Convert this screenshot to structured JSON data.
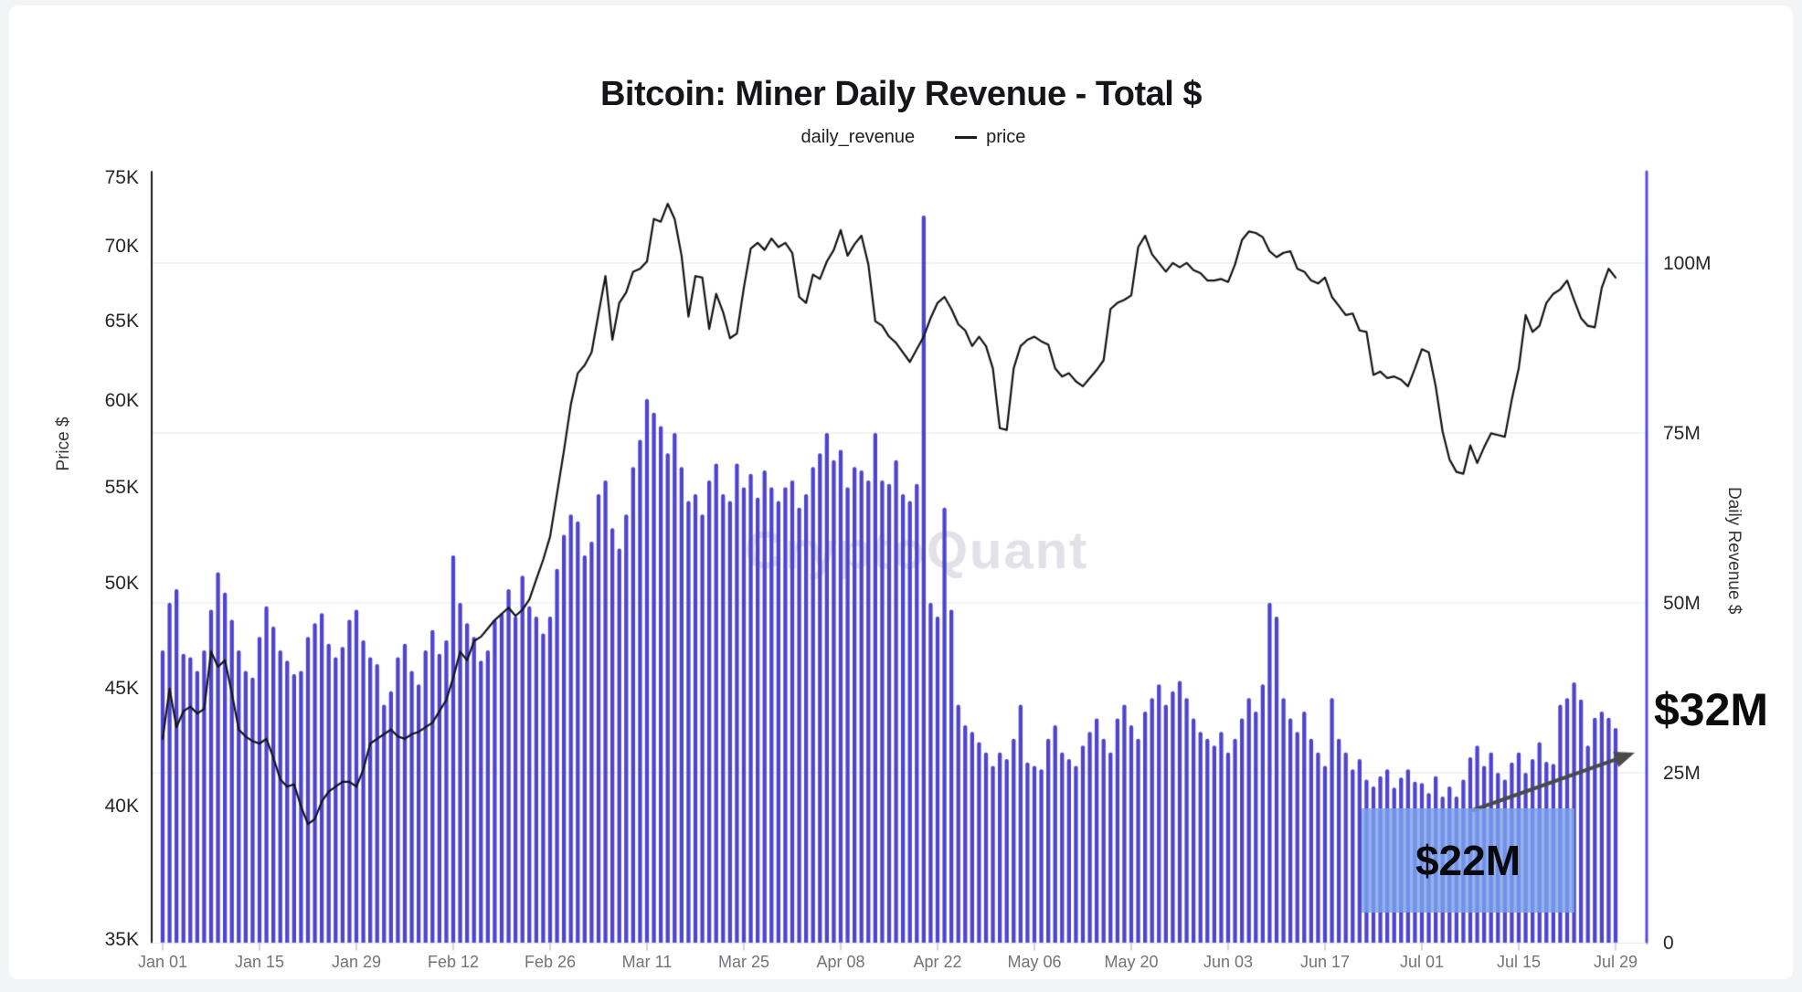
{
  "header": {
    "title": "Bitcoin: Miner Daily Revenue - Total $"
  },
  "legend": [
    {
      "label": "daily_revenue",
      "marker": "dot"
    },
    {
      "label": "price",
      "marker": "line"
    }
  ],
  "watermark": "CryptoQuant",
  "annotations": {
    "box_label": "$22M",
    "callout_label": "$32M"
  },
  "axes": {
    "price": {
      "title": "Price $",
      "scale": "log",
      "tick_labels": [
        "75K",
        "70K",
        "65K",
        "60K",
        "55K",
        "50K",
        "45K",
        "40K",
        "35K"
      ],
      "tick_values": [
        75,
        70,
        65,
        60,
        55,
        50,
        45,
        40,
        35
      ]
    },
    "revenue": {
      "title": "Daily Revenue $",
      "scale": "linear",
      "tick_labels": [
        "100M",
        "75M",
        "50M",
        "25M",
        "0"
      ],
      "tick_values": [
        100,
        75,
        50,
        25,
        0
      ]
    },
    "x": {
      "tick_labels": [
        "Jan 01",
        "Jan 15",
        "Jan 29",
        "Feb 12",
        "Feb 26",
        "Mar 11",
        "Mar 25",
        "Apr 08",
        "Apr 22",
        "May 06",
        "May 20",
        "Jun 03",
        "Jun 17",
        "Jul 01",
        "Jul 15",
        "Jul 29"
      ],
      "tick_day_index": [
        0,
        14,
        28,
        42,
        56,
        70,
        84,
        98,
        112,
        126,
        140,
        154,
        168,
        182,
        196,
        210
      ]
    }
  },
  "colors": {
    "bar": "#4e44d0",
    "price_line": "#131318",
    "left_axis": "#1c1c1f",
    "right_axis": "#5b4cd9",
    "grid": "#eeeef1",
    "baseline": "#e6e6ea",
    "tick_mark": "#c6c6cc",
    "arrow": "#4a4a4a",
    "watermark": "#e1e1e7"
  },
  "chart_data": {
    "type": "bar",
    "title": "Bitcoin: Miner Daily Revenue - Total $",
    "date_range": "Jan 01 - Jul 29",
    "n_points": 211,
    "legend_position": "top-center",
    "grid": "horizontal, right-axis ticks only",
    "left_axis": {
      "label": "Price $",
      "scale": "log",
      "min": 35000,
      "max": 75000
    },
    "right_axis": {
      "label": "Daily Revenue $",
      "scale": "linear",
      "min": 0,
      "max": 110000000
    },
    "series": [
      {
        "name": "daily_revenue",
        "type": "bar",
        "axis": "right",
        "unit": "million USD per day",
        "values": [
          43,
          50,
          52,
          42.5,
          42,
          40,
          43,
          49,
          54.5,
          51.5,
          47.5,
          43,
          40,
          39,
          45,
          49.5,
          46.5,
          43,
          41.5,
          39.5,
          40,
          45,
          47,
          48.5,
          44,
          42,
          43.5,
          47.5,
          49,
          44.5,
          42,
          41,
          35,
          37,
          42,
          44,
          40,
          38,
          43,
          46,
          42.5,
          44.5,
          57,
          50,
          47,
          45,
          41.5,
          43,
          47.5,
          48.5,
          52,
          48,
          54,
          49.5,
          48,
          45.5,
          48,
          55,
          60,
          63,
          62,
          57,
          59,
          66,
          68,
          61,
          58,
          63,
          70,
          74,
          80,
          78,
          76,
          72,
          75,
          70,
          65,
          66,
          63,
          68,
          70.5,
          66,
          65,
          70.5,
          67,
          69,
          65.5,
          69.5,
          67,
          65,
          67,
          68,
          64,
          66,
          70,
          72,
          75,
          71,
          72.5,
          67,
          70,
          69.5,
          68,
          75,
          68,
          67.5,
          71,
          66,
          65,
          67.5,
          107,
          50,
          48,
          64,
          49,
          35,
          32,
          31,
          29.5,
          28,
          26,
          28,
          27,
          30,
          35,
          26.5,
          26,
          25.5,
          30,
          32,
          28,
          27,
          26,
          29,
          31,
          33,
          30,
          28,
          33,
          35,
          32,
          30,
          34,
          36,
          38,
          35,
          37,
          38.5,
          36,
          33,
          31,
          30,
          29,
          31,
          28,
          30,
          33,
          36,
          34,
          38,
          50,
          48,
          36,
          33,
          31,
          34,
          30,
          28,
          26,
          36,
          30,
          28,
          25.5,
          27,
          24,
          23,
          24.5,
          25.5,
          22.8,
          24.3,
          25.5,
          23.7,
          23.5,
          22,
          24.5,
          21.5,
          23,
          21.5,
          24,
          27.3,
          29,
          26,
          28,
          25,
          24,
          26.5,
          28,
          25,
          27,
          29.5,
          26.6,
          26.3,
          35,
          36,
          38.3,
          35.8,
          29,
          33.1,
          34,
          33.1,
          31.6
        ]
      },
      {
        "name": "price",
        "type": "line",
        "axis": "left",
        "unit": "thousand USD",
        "values": [
          42.8,
          45.0,
          43.3,
          44.0,
          44.2,
          43.9,
          44.1,
          46.7,
          46.0,
          46.3,
          44.8,
          43.2,
          42.9,
          42.7,
          42.6,
          42.8,
          42.0,
          41.1,
          40.8,
          40.9,
          40.0,
          39.3,
          39.5,
          40.2,
          40.6,
          40.8,
          41.0,
          41.0,
          40.8,
          41.5,
          42.6,
          42.8,
          43.0,
          43.2,
          42.9,
          42.8,
          43.0,
          43.1,
          43.3,
          43.5,
          44.0,
          44.5,
          45.5,
          46.7,
          46.3,
          47.2,
          47.4,
          47.8,
          48.2,
          48.5,
          48.8,
          48.4,
          48.7,
          49.2,
          50.2,
          51.2,
          52.4,
          54.7,
          57.1,
          59.8,
          61.7,
          62.2,
          63.0,
          65.5,
          68.0,
          63.8,
          66.2,
          66.9,
          68.3,
          68.5,
          69.0,
          72.0,
          71.8,
          73.1,
          72.0,
          69.4,
          65.3,
          68.0,
          67.9,
          64.5,
          66.8,
          65.6,
          63.9,
          64.2,
          67.2,
          69.9,
          70.3,
          69.8,
          70.6,
          70.0,
          70.3,
          69.6,
          66.6,
          66.2,
          68.1,
          67.8,
          69.0,
          69.8,
          71.2,
          69.4,
          70.2,
          70.8,
          68.8,
          65.0,
          64.7,
          64.0,
          63.6,
          63.0,
          62.4,
          63.2,
          64.0,
          65.2,
          66.2,
          66.6,
          65.8,
          64.8,
          64.4,
          63.4,
          64.0,
          63.4,
          62.0,
          58.4,
          58.3,
          62.0,
          63.4,
          63.8,
          64.0,
          63.7,
          63.5,
          62.0,
          61.5,
          61.7,
          61.2,
          60.9,
          61.4,
          61.9,
          62.5,
          65.8,
          66.2,
          66.4,
          66.7,
          70.0,
          70.8,
          69.5,
          68.9,
          68.3,
          68.9,
          68.6,
          68.9,
          68.4,
          68.2,
          67.7,
          67.7,
          67.8,
          67.6,
          68.8,
          70.5,
          71.1,
          71.0,
          70.7,
          69.7,
          69.3,
          69.6,
          69.7,
          68.5,
          68.3,
          67.7,
          67.5,
          67.9,
          66.6,
          66.0,
          65.4,
          65.5,
          64.4,
          64.3,
          61.6,
          61.8,
          61.4,
          61.5,
          61.3,
          60.9,
          62.0,
          63.2,
          63.0,
          60.9,
          58.2,
          56.6,
          55.9,
          55.8,
          57.4,
          56.4,
          57.3,
          58.1,
          58.0,
          57.9,
          60.1,
          62.0,
          65.4,
          64.3,
          64.7,
          66.2,
          66.8,
          67.1,
          67.7,
          66.4,
          65.2,
          64.7,
          64.6,
          67.2,
          68.5,
          67.9
        ]
      }
    ]
  }
}
